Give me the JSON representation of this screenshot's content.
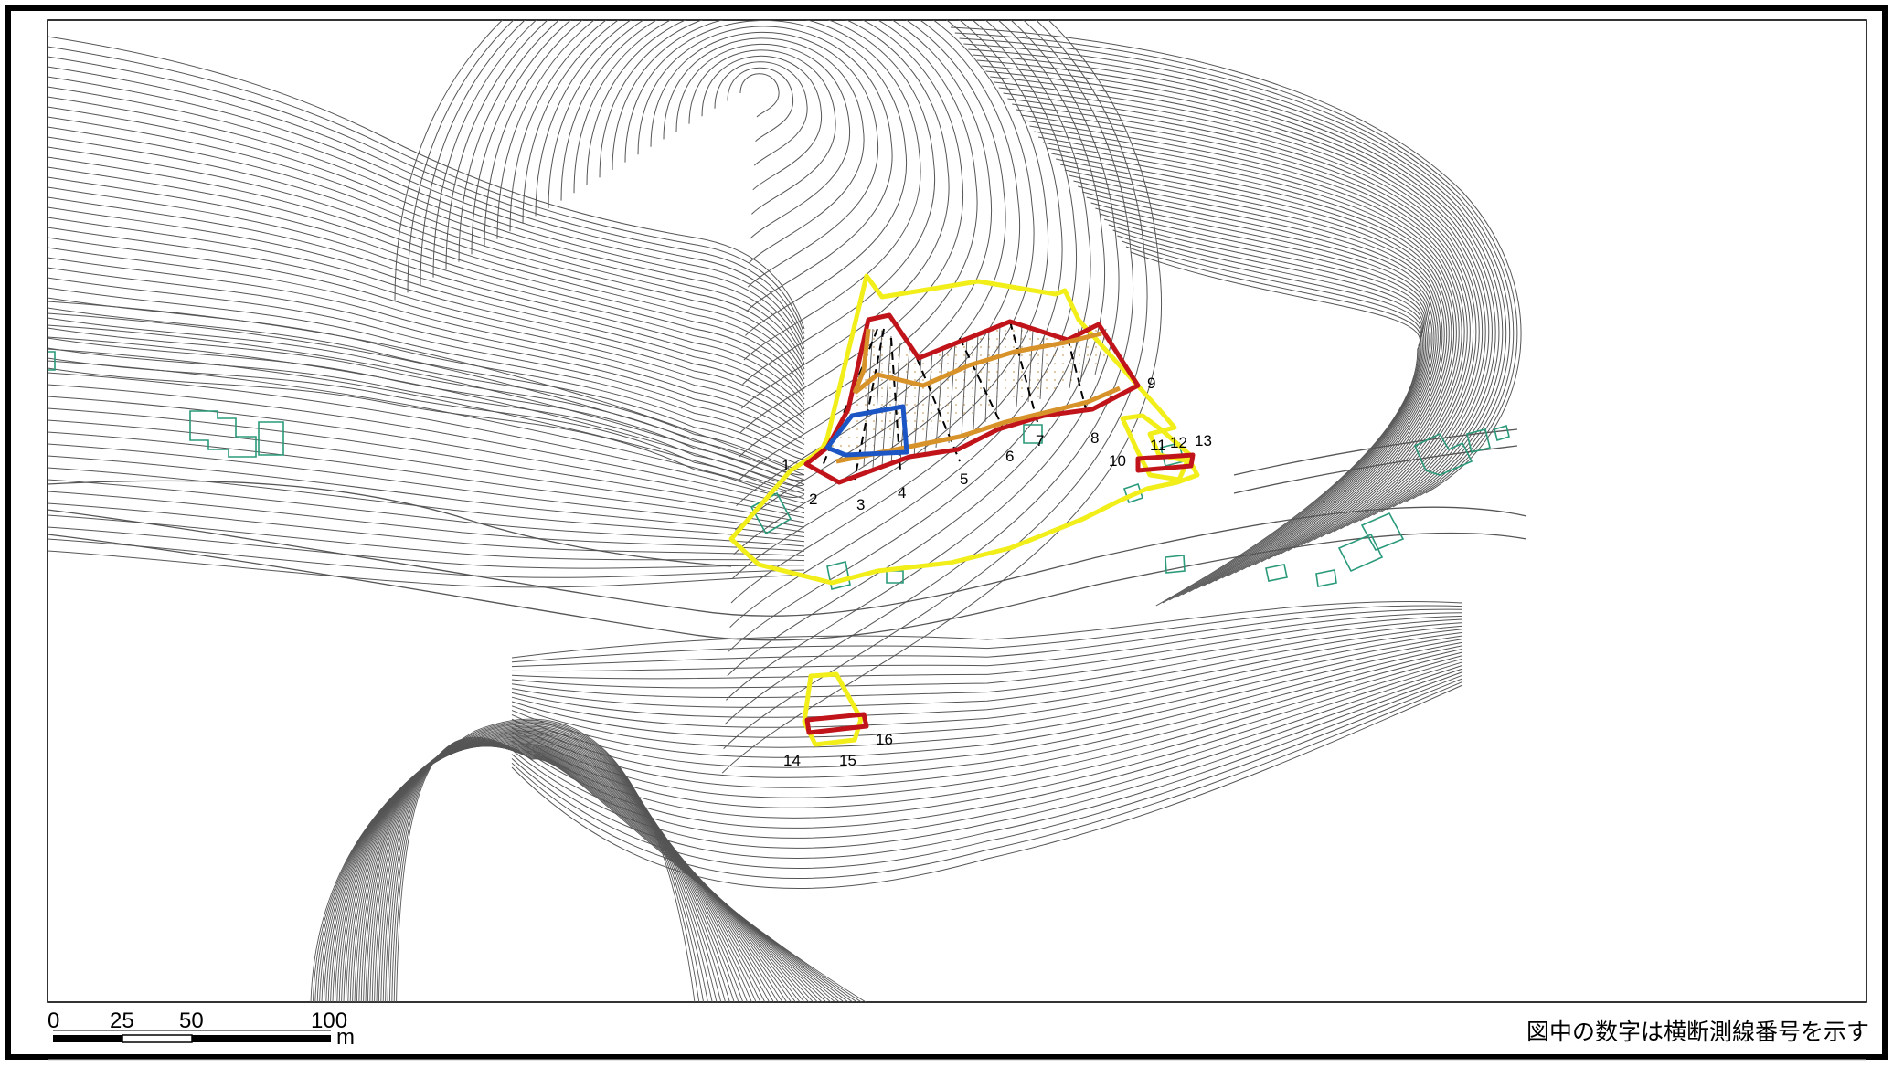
{
  "map": {
    "caption": "図中の数字は横断測線番号を示す",
    "scale_bar": {
      "ticks": [
        "0",
        "25",
        "50",
        "100"
      ],
      "unit": "m"
    },
    "section_labels": [
      "1",
      "2",
      "3",
      "4",
      "5",
      "6",
      "7",
      "8",
      "9",
      "10",
      "11",
      "12",
      "13",
      "14",
      "15",
      "16"
    ],
    "legend_colors": {
      "outer_zone": "#f2ee1a",
      "landslide_block": "#c0141a",
      "inner_block": "#d8922a",
      "small_block": "#1c56c4",
      "buildings": "#2a9a7a",
      "contours": "#555555"
    }
  }
}
